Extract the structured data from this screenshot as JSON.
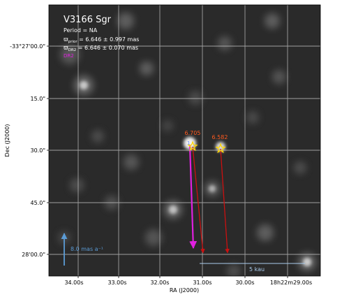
{
  "plot": {
    "title": "V3166 Sgr",
    "period": "Period = NA",
    "prior_prefix": "ϖ",
    "prior_sub": "prior",
    "prior_value": " = 6.646 ± 0.997 mas",
    "dr2_prefix": "ϖ",
    "dr2_sub": "DR2",
    "dr2_value": " = 6.646 ± 0.070 mas",
    "magenta_label": "DR2",
    "xlabel": "RA (J2000)",
    "ylabel": "Dec (J2000)",
    "x_ticks": [
      "34.00s",
      "33.00s",
      "32.00s",
      "31.00s",
      "30.00s",
      "18h22m29.00s"
    ],
    "y_ticks": [
      "-33°27'00.0\"",
      "15.0\"",
      "30.0\"",
      "45.0\"",
      "28'00.0\""
    ],
    "stars": [
      {
        "label": "6.705"
      },
      {
        "label": "6.582"
      }
    ],
    "secondary_label": "1",
    "scale_bar_label": "5 kau",
    "pm_arrow_label": "8.0 mas a⁻¹"
  },
  "colors": {
    "title_text": "#ffffff",
    "star_label": "#ff5a1f",
    "star_marker": "#ffd700",
    "pm_arrow": "#cc1010",
    "dr2_arrow": "#e020e0",
    "secondary_marker": "#6a8cff",
    "scale_bar": "#aaccee",
    "pm_key_arrow": "#5b9bd5",
    "grid": "#c8c8c8"
  }
}
